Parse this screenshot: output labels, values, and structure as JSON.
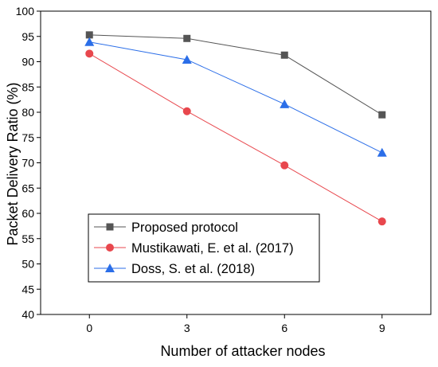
{
  "chart_data": {
    "type": "line",
    "title": "",
    "xlabel": "Number of attacker nodes",
    "ylabel": "Packet Delivery Ratio (%)",
    "x": [
      0,
      3,
      6,
      9
    ],
    "xlim": [
      -1.5,
      10.5
    ],
    "ylim": [
      40,
      100
    ],
    "yticks": [
      40,
      45,
      50,
      55,
      60,
      65,
      70,
      75,
      80,
      85,
      90,
      95,
      100
    ],
    "xticks": [
      0,
      3,
      6,
      9
    ],
    "grid": false,
    "legend_position": "lower-left",
    "series": [
      {
        "name": "Proposed protocol",
        "values": [
          95.3,
          94.6,
          91.3,
          79.5
        ],
        "color": "#555555",
        "marker": "square"
      },
      {
        "name": "Mustikawati, E. et al. (2017)",
        "values": [
          91.6,
          80.2,
          69.5,
          58.4
        ],
        "color": "#e8474d",
        "marker": "circle"
      },
      {
        "name": "Doss, S. et al. (2018)",
        "values": [
          93.9,
          90.4,
          81.6,
          72.0
        ],
        "color": "#2b6ee8",
        "marker": "triangle"
      }
    ]
  }
}
